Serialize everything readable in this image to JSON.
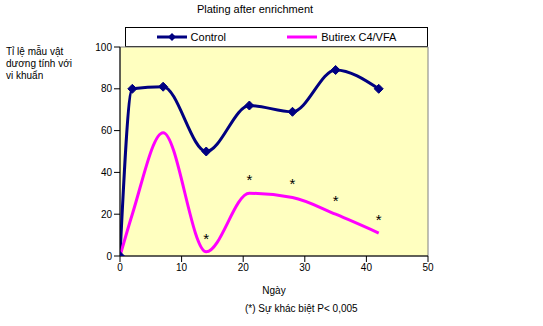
{
  "chart_data": {
    "type": "line",
    "title": "Plating after enrichment",
    "x_label": "Ngày",
    "y_label": "Tỉ lệ mẫu vật dương tính với vi khuẩn",
    "footnote": "(*) Sự khác biệt P< 0,005",
    "x": [
      0,
      2,
      7,
      14,
      21,
      28,
      35,
      42
    ],
    "series": [
      {
        "name": "Control",
        "color": "#000080",
        "marker": "diamond",
        "line_style": "solid",
        "values": [
          0,
          80,
          81,
          50,
          72,
          69,
          89,
          80
        ]
      },
      {
        "name": "Butirex C4/VFA",
        "color": "#ff00ff",
        "marker": "none",
        "line_style": "solid",
        "values": [
          0,
          20,
          59,
          2,
          30,
          28,
          20,
          11
        ]
      }
    ],
    "annotations": [
      {
        "x": 14,
        "y": 2,
        "text": "*"
      },
      {
        "x": 21,
        "y": 30,
        "text": "*"
      },
      {
        "x": 28,
        "y": 28,
        "text": "*"
      },
      {
        "x": 35,
        "y": 20,
        "text": "*"
      },
      {
        "x": 42,
        "y": 11,
        "text": "*"
      }
    ],
    "xlim": [
      0,
      50
    ],
    "xticks": [
      0,
      10,
      20,
      30,
      40,
      50
    ],
    "ylim": [
      0,
      100
    ],
    "yticks": [
      0,
      20,
      40,
      60,
      80,
      100
    ],
    "grid": false,
    "legend": "top"
  }
}
